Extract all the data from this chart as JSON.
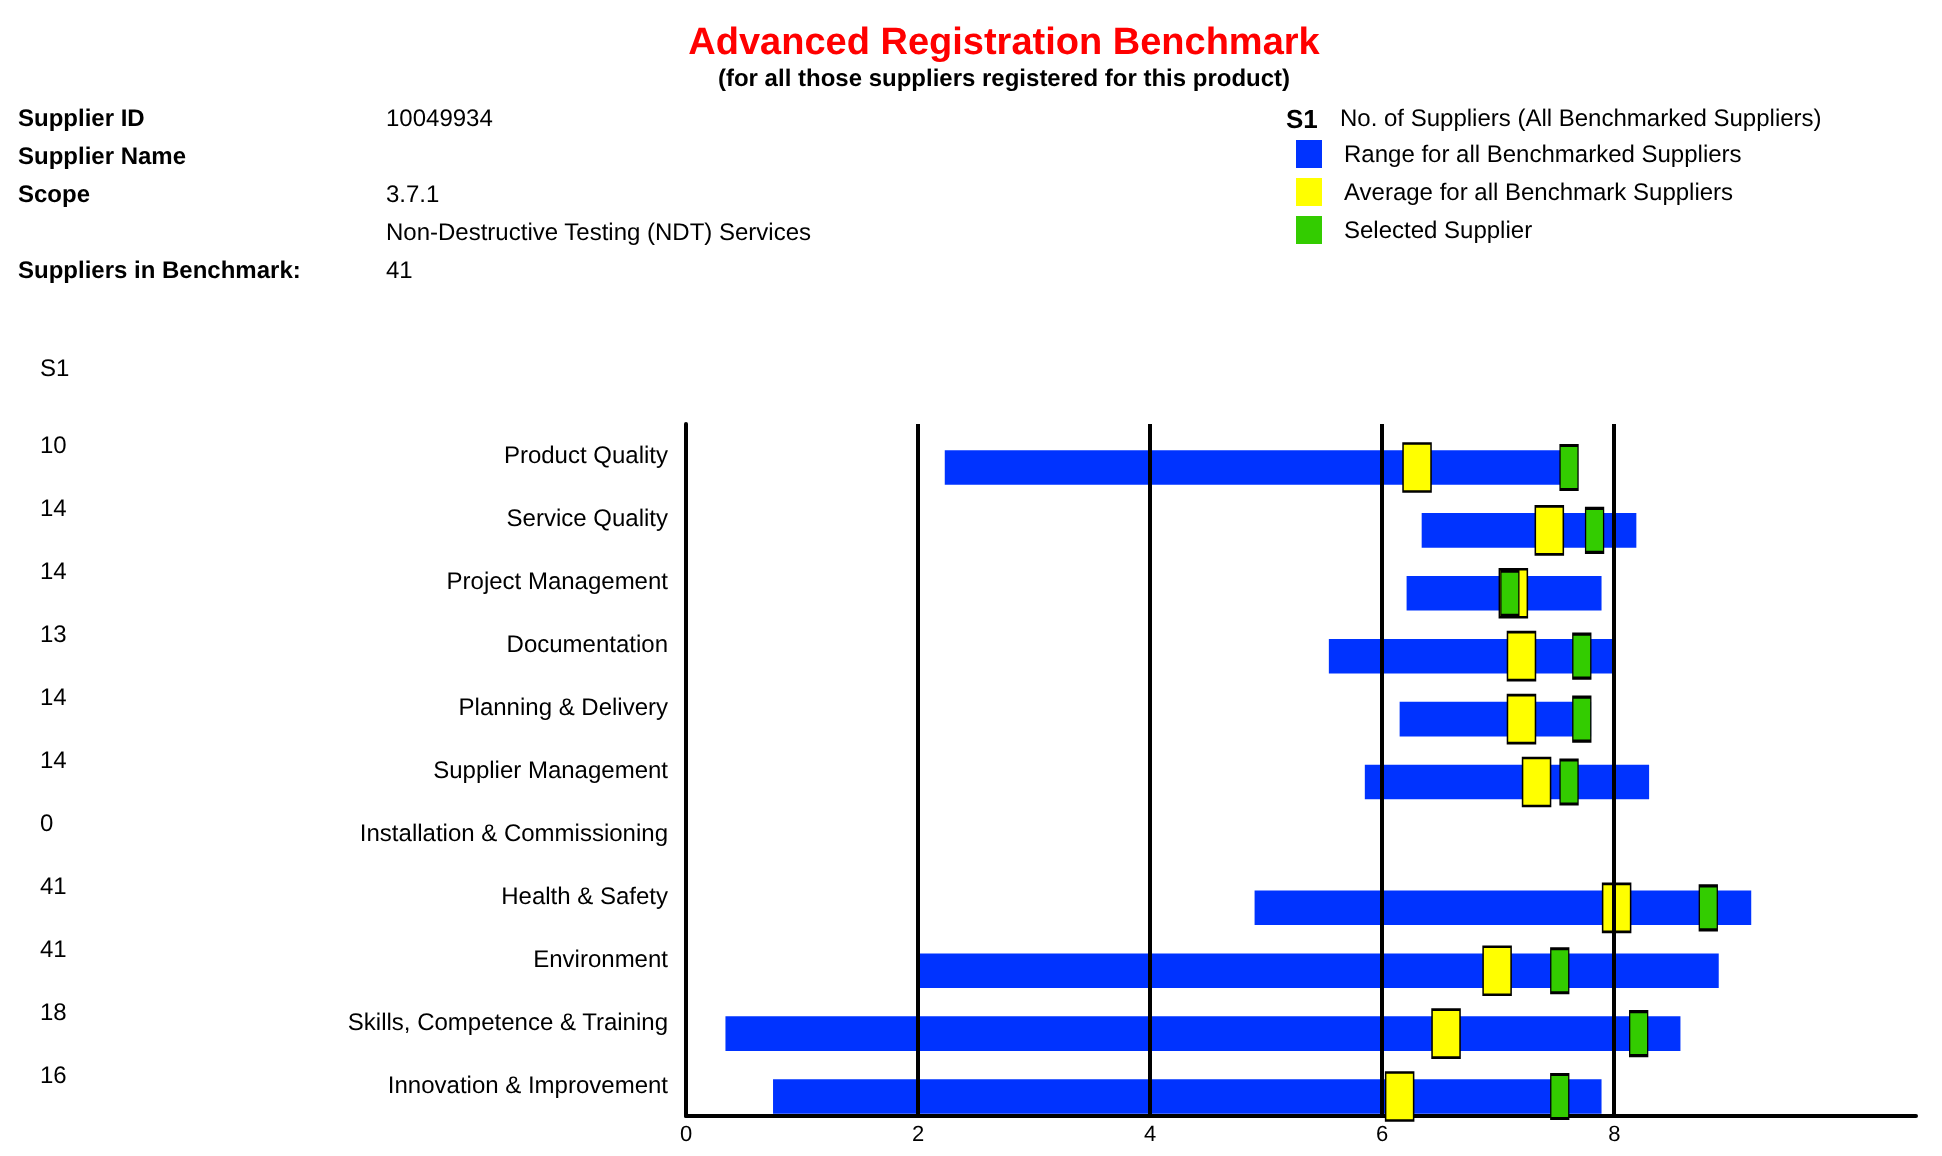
{
  "chart_data": {
    "type": "bar",
    "orientation": "horizontal",
    "title": "Advanced Registration Benchmark",
    "subtitle": "(for all those suppliers registered for this product)",
    "categories": [
      "Product Quality",
      "Service Quality",
      "Project Management",
      "Documentation",
      "Planning & Delivery",
      "Supplier Management",
      "Installation & Commissioning",
      "Health & Safety",
      "Environment",
      "Skills, Competence & Training",
      "Innovation & Improvement"
    ],
    "series": [
      {
        "name": "Range for all Benchmarked Suppliers",
        "color": "#0033ff",
        "base": [
          2.23,
          6.34,
          6.21,
          5.54,
          6.15,
          5.85,
          null,
          4.9,
          1.99,
          0.34,
          0.75
        ],
        "values": [
          5.33,
          1.85,
          1.68,
          2.46,
          1.65,
          2.45,
          null,
          4.28,
          6.91,
          8.23,
          7.14
        ]
      },
      {
        "type": "scatter",
        "name": "Average for all Benchmark Suppliers",
        "color": "#ffff00",
        "marker": "square",
        "values": [
          6.3,
          7.44,
          7.13,
          7.2,
          7.2,
          7.33,
          null,
          8.02,
          6.99,
          6.55,
          6.15
        ]
      },
      {
        "type": "scatter",
        "name": "Selected Supplier",
        "color": "#33cc00",
        "marker": "square",
        "values": [
          7.61,
          7.83,
          7.1,
          7.72,
          7.72,
          7.61,
          null,
          8.81,
          7.53,
          8.21,
          7.53
        ]
      }
    ],
    "xlim": [
      0,
      10.6
    ],
    "xticks": [
      0,
      2,
      4,
      6,
      8
    ],
    "grid": "x",
    "legend": "top right",
    "annotations": [
      "Supplier ID",
      "10049934",
      "Supplier Name",
      "Scope",
      "3.7.1",
      "Non-Destructive Testing (NDT) Services",
      "Suppliers in Benchmark:",
      "41",
      "S1",
      "No. of Suppliers (All Benchmarked Suppliers)",
      "10",
      "14",
      "14",
      "13",
      "14",
      "14",
      "0",
      "41",
      "41",
      "18",
      "16"
    ]
  }
}
